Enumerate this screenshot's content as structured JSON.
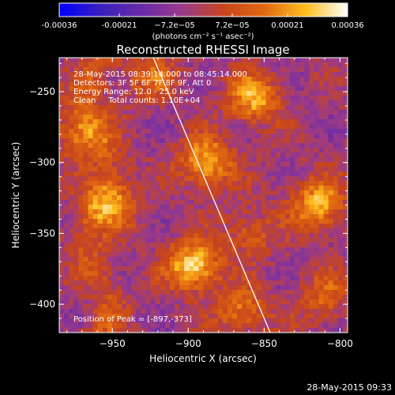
{
  "colorbar": {
    "ticks": [
      "-0.00036",
      "-0.00021",
      "−7.2e−05",
      "7.2e−05",
      "0.00021",
      "0.00036"
    ],
    "tick_values": [
      -0.00036,
      -0.00021,
      -7.2e-05,
      7.2e-05,
      0.00021,
      0.00036
    ],
    "min": -0.00036,
    "max": 0.00036,
    "units_label": "(photons cm⁻² s⁻¹ asec⁻²)",
    "colors": [
      "#0000ff",
      "#3a1fbf",
      "#6a2ba8",
      "#9a3a8a",
      "#c8451c",
      "#e26a10",
      "#ffbf20",
      "#ffffff"
    ]
  },
  "chart_data": {
    "type": "heatmap",
    "title": "Reconstructed RHESSI Image",
    "xlabel": "Heliocentric X (arcsec)",
    "ylabel": "Heliocentric Y (arcsec)",
    "xlim": [
      -985,
      -795
    ],
    "ylim": [
      -420,
      -226
    ],
    "x_ticks": [
      -950,
      -900,
      -850,
      -800
    ],
    "y_ticks": [
      -250,
      -300,
      -350,
      -400
    ],
    "x_tick_labels": [
      "−950",
      "−900",
      "−850",
      "−800"
    ],
    "y_tick_labels": [
      "−250",
      "−300",
      "−350",
      "−400"
    ],
    "info_lines": [
      "28-May-2015 08:39:14.000 to 08:45:14.000",
      "Detectors: 3F 5F 6F 7F 8F 9F, Att 0",
      "Energy Range: 12.0 - 25.0 keV",
      "Clean     Total counts: 1.10E+04"
    ],
    "peak_label": "Position of Peak = [-897,-373]",
    "peak": [
      -897,
      -373
    ],
    "limb_line": [
      [
        -923,
        -226
      ],
      [
        -846,
        -420
      ]
    ],
    "bright_sources": [
      {
        "x": -888,
        "y": -300,
        "intensity": 0.0003
      },
      {
        "x": -897,
        "y": -373,
        "intensity": 0.00036
      },
      {
        "x": -857,
        "y": -255,
        "intensity": 0.00028
      },
      {
        "x": -815,
        "y": -330,
        "intensity": 0.0003
      },
      {
        "x": -950,
        "y": -330,
        "intensity": 0.00022
      },
      {
        "x": -972,
        "y": -280,
        "intensity": 0.00018
      },
      {
        "x": -865,
        "y": -405,
        "intensity": 0.0002
      },
      {
        "x": -860,
        "y": -350,
        "intensity": 0.00015
      },
      {
        "x": -925,
        "y": -240,
        "intensity": 0.00016
      },
      {
        "x": -810,
        "y": -395,
        "intensity": 0.00016
      }
    ]
  },
  "timestamp": "28-May-2015 09:33"
}
